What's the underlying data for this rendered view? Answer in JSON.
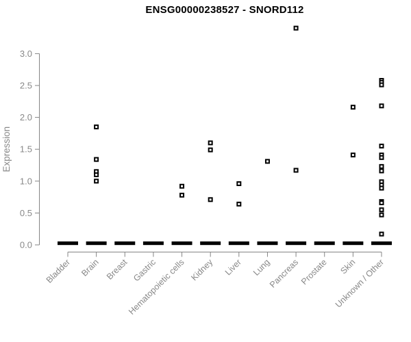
{
  "page": {
    "background": "#ffffff"
  },
  "chart_data": {
    "type": "scatter",
    "title": "ENSG00000238527 - SNORD112",
    "xlabel": "",
    "ylabel": "Expression",
    "ylim": [
      0,
      3.45
    ],
    "ytick_labels": [
      "0.0",
      "0.5",
      "1.0",
      "1.5",
      "2.0",
      "2.5",
      "3.0"
    ],
    "grid": false,
    "legend_position": "none",
    "marker": "open-square",
    "x_tick_rotation": 45,
    "categories": [
      "Bladder",
      "Brain",
      "Breast",
      "Gastric",
      "Hematopoietic cells",
      "Kidney",
      "Liver",
      "Lung",
      "Pancreas",
      "Prostate",
      "Skin",
      "Unknown / Other"
    ],
    "series": [
      {
        "category": "Bladder",
        "nonzero_values": [],
        "zero_cluster": true
      },
      {
        "category": "Brain",
        "nonzero_values": [
          1.85,
          1.34,
          1.15,
          1.1,
          1.0
        ],
        "zero_cluster": true
      },
      {
        "category": "Breast",
        "nonzero_values": [],
        "zero_cluster": true
      },
      {
        "category": "Gastric",
        "nonzero_values": [],
        "zero_cluster": true
      },
      {
        "category": "Hematopoietic cells",
        "nonzero_values": [
          0.92,
          0.78
        ],
        "zero_cluster": true
      },
      {
        "category": "Kidney",
        "nonzero_values": [
          1.6,
          1.49,
          0.71
        ],
        "zero_cluster": true
      },
      {
        "category": "Liver",
        "nonzero_values": [
          0.96,
          0.64
        ],
        "zero_cluster": true
      },
      {
        "category": "Lung",
        "nonzero_values": [
          1.31
        ],
        "zero_cluster": true
      },
      {
        "category": "Pancreas",
        "nonzero_values": [
          3.4,
          1.17
        ],
        "zero_cluster": true
      },
      {
        "category": "Prostate",
        "nonzero_values": [],
        "zero_cluster": true
      },
      {
        "category": "Skin",
        "nonzero_values": [
          2.16,
          1.41
        ],
        "zero_cluster": true
      },
      {
        "category": "Unknown / Other",
        "nonzero_values": [
          2.58,
          2.55,
          2.51,
          2.18,
          1.55,
          1.41,
          1.37,
          1.23,
          1.16,
          0.99,
          0.94,
          0.89,
          0.68,
          0.66,
          0.55,
          0.47,
          0.17
        ],
        "zero_cluster": true
      }
    ],
    "colors": {
      "point": "#000000",
      "axis": "#848484",
      "tick_label": "#888888",
      "title": "#000000"
    }
  }
}
